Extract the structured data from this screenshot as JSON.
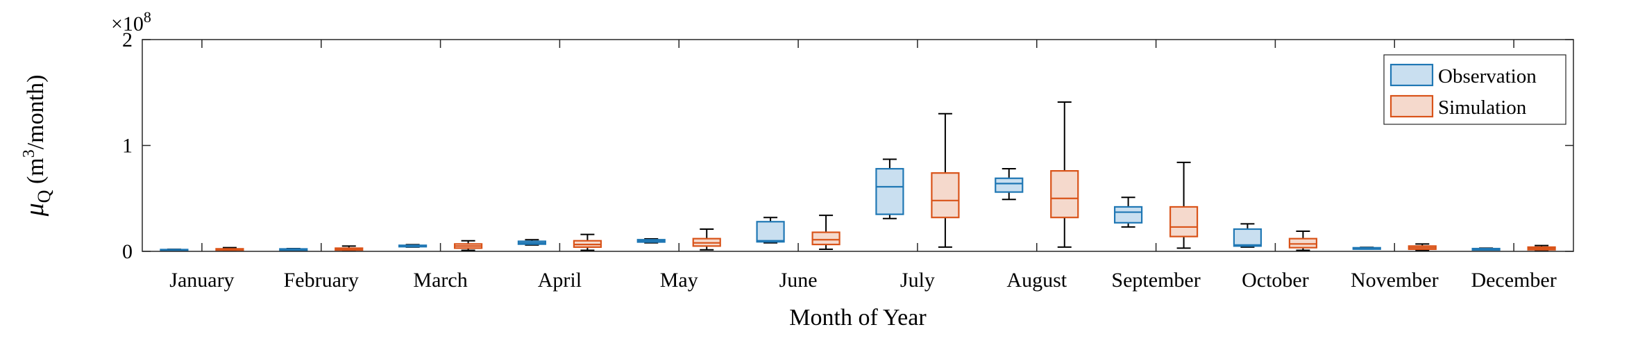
{
  "chart_data": {
    "type": "boxplot",
    "title": "",
    "xlabel": "Month of Year",
    "ylabel": {
      "mu": "μ",
      "sub": "Q",
      "pre": " (m",
      "sup": "3",
      "post": "/month)"
    },
    "y_exponent": {
      "base": "×10",
      "power": "8"
    },
    "ylim_scaled": [
      0,
      2
    ],
    "yticks": [
      {
        "value": 0,
        "label": "0"
      },
      {
        "value": 1,
        "label": "1"
      },
      {
        "value": 2,
        "label": "2"
      }
    ],
    "categories": [
      "January",
      "February",
      "March",
      "April",
      "May",
      "June",
      "July",
      "August",
      "September",
      "October",
      "November",
      "December"
    ],
    "legend": {
      "position": "top-right"
    },
    "series": [
      {
        "name": "Observation",
        "color": "#1f77b4",
        "fill": "#c9dff0",
        "boxes": [
          {
            "min": 0.01,
            "q1": 0.013,
            "median": 0.015,
            "q3": 0.017,
            "max": 0.02
          },
          {
            "min": 0.015,
            "q1": 0.018,
            "median": 0.02,
            "q3": 0.023,
            "max": 0.026
          },
          {
            "min": 0.04,
            "q1": 0.045,
            "median": 0.05,
            "q3": 0.057,
            "max": 0.063
          },
          {
            "min": 0.06,
            "q1": 0.068,
            "median": 0.08,
            "q3": 0.095,
            "max": 0.11
          },
          {
            "min": 0.08,
            "q1": 0.088,
            "median": 0.1,
            "q3": 0.11,
            "max": 0.118
          },
          {
            "min": 0.08,
            "q1": 0.09,
            "median": 0.1,
            "q3": 0.28,
            "max": 0.32
          },
          {
            "min": 0.31,
            "q1": 0.35,
            "median": 0.61,
            "q3": 0.78,
            "max": 0.87
          },
          {
            "min": 0.49,
            "q1": 0.56,
            "median": 0.64,
            "q3": 0.69,
            "max": 0.78
          },
          {
            "min": 0.23,
            "q1": 0.27,
            "median": 0.37,
            "q3": 0.42,
            "max": 0.51
          },
          {
            "min": 0.04,
            "q1": 0.05,
            "median": 0.06,
            "q3": 0.21,
            "max": 0.26
          },
          {
            "min": 0.022,
            "q1": 0.026,
            "median": 0.03,
            "q3": 0.034,
            "max": 0.038
          },
          {
            "min": 0.015,
            "q1": 0.018,
            "median": 0.022,
            "q3": 0.026,
            "max": 0.03
          }
        ]
      },
      {
        "name": "Simulation",
        "color": "#d95319",
        "fill": "#f5d9cc",
        "boxes": [
          {
            "min": 0.005,
            "q1": 0.012,
            "median": 0.018,
            "q3": 0.024,
            "max": 0.035
          },
          {
            "min": 0.005,
            "q1": 0.012,
            "median": 0.02,
            "q3": 0.03,
            "max": 0.05
          },
          {
            "min": 0.01,
            "q1": 0.03,
            "median": 0.05,
            "q3": 0.07,
            "max": 0.1
          },
          {
            "min": 0.01,
            "q1": 0.04,
            "median": 0.065,
            "q3": 0.1,
            "max": 0.16
          },
          {
            "min": 0.015,
            "q1": 0.05,
            "median": 0.08,
            "q3": 0.12,
            "max": 0.21
          },
          {
            "min": 0.02,
            "q1": 0.065,
            "median": 0.11,
            "q3": 0.18,
            "max": 0.34
          },
          {
            "min": 0.04,
            "q1": 0.32,
            "median": 0.48,
            "q3": 0.74,
            "max": 1.3
          },
          {
            "min": 0.04,
            "q1": 0.32,
            "median": 0.5,
            "q3": 0.76,
            "max": 1.41
          },
          {
            "min": 0.03,
            "q1": 0.14,
            "median": 0.23,
            "q3": 0.42,
            "max": 0.84
          },
          {
            "min": 0.01,
            "q1": 0.035,
            "median": 0.07,
            "q3": 0.12,
            "max": 0.19
          },
          {
            "min": 0.008,
            "q1": 0.02,
            "median": 0.035,
            "q3": 0.05,
            "max": 0.07
          },
          {
            "min": 0.005,
            "q1": 0.015,
            "median": 0.028,
            "q3": 0.04,
            "max": 0.055
          }
        ]
      }
    ]
  }
}
